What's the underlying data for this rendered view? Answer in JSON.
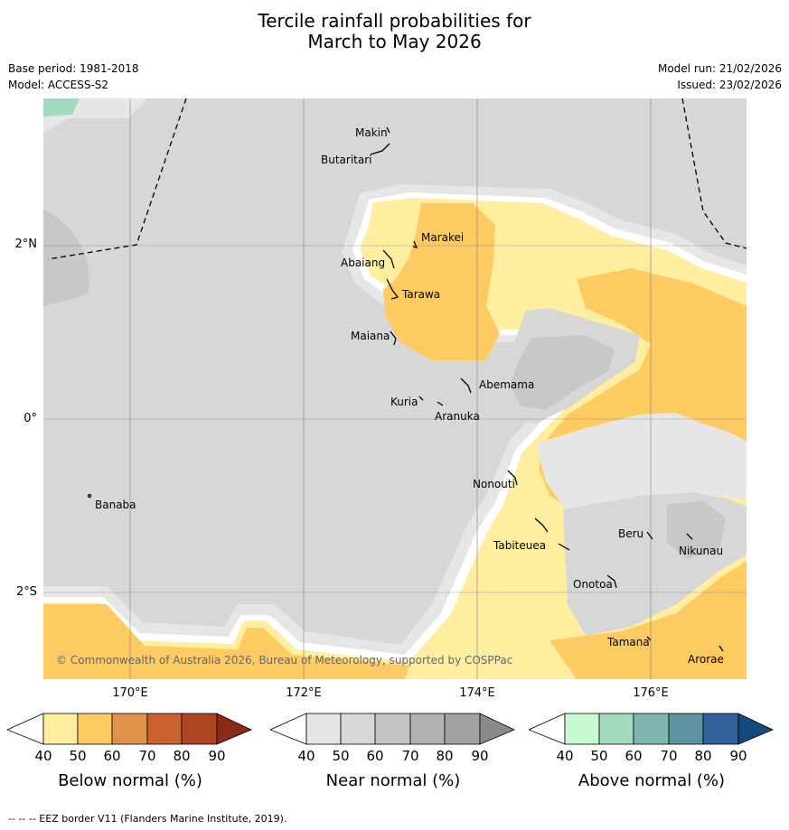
{
  "header": {
    "title_line1": "Tercile rainfall probabilities for",
    "title_line2": "March to May 2026",
    "base_period": "Base period: 1981-2018",
    "model": "Model: ACCESS-S2",
    "model_run": "Model run: 21/02/2026",
    "issued": "Issued: 23/02/2026"
  },
  "map": {
    "lon_labels": [
      "170°E",
      "172°E",
      "174°E",
      "176°E"
    ],
    "lat_labels": [
      "2°N",
      "0°",
      "2°S"
    ],
    "copyright": "© Commonwealth of Australia 2026, Bureau of Meteorology, supported by COSPPac",
    "islands": [
      "Makin",
      "Butaritari",
      "Marakei",
      "Abaiang",
      "Tarawa",
      "Maiana",
      "Abemama",
      "Kuria",
      "Aranuka",
      "Nonouti",
      "Banaba",
      "Beru",
      "Nikunau",
      "Tabiteuea",
      "Onotoa",
      "Tamana",
      "Arorae"
    ]
  },
  "legend": {
    "below": {
      "caption": "Below normal (%)",
      "ticks": [
        "40",
        "50",
        "60",
        "70",
        "80",
        "90"
      ],
      "colors": [
        "#ffeda0",
        "#fecb63",
        "#e0914a",
        "#cc6230",
        "#ae4522",
        "#8a2b15"
      ]
    },
    "near": {
      "caption": "Near normal (%)",
      "ticks": [
        "40",
        "50",
        "60",
        "70",
        "80",
        "90"
      ],
      "colors": [
        "#e5e5e5",
        "#d7d7d7",
        "#c4c4c4",
        "#b2b2b2",
        "#a1a1a1",
        "#8a8a8a"
      ]
    },
    "above": {
      "caption": "Above normal (%)",
      "ticks": [
        "40",
        "50",
        "60",
        "70",
        "80",
        "90"
      ],
      "colors": [
        "#c8fad2",
        "#a3d9bd",
        "#7fb7b0",
        "#5d93a0",
        "#31629a",
        "#144a80"
      ]
    }
  },
  "footnote": "--  --  -- EEZ border V11 (Flanders Marine Institute, 2019)."
}
